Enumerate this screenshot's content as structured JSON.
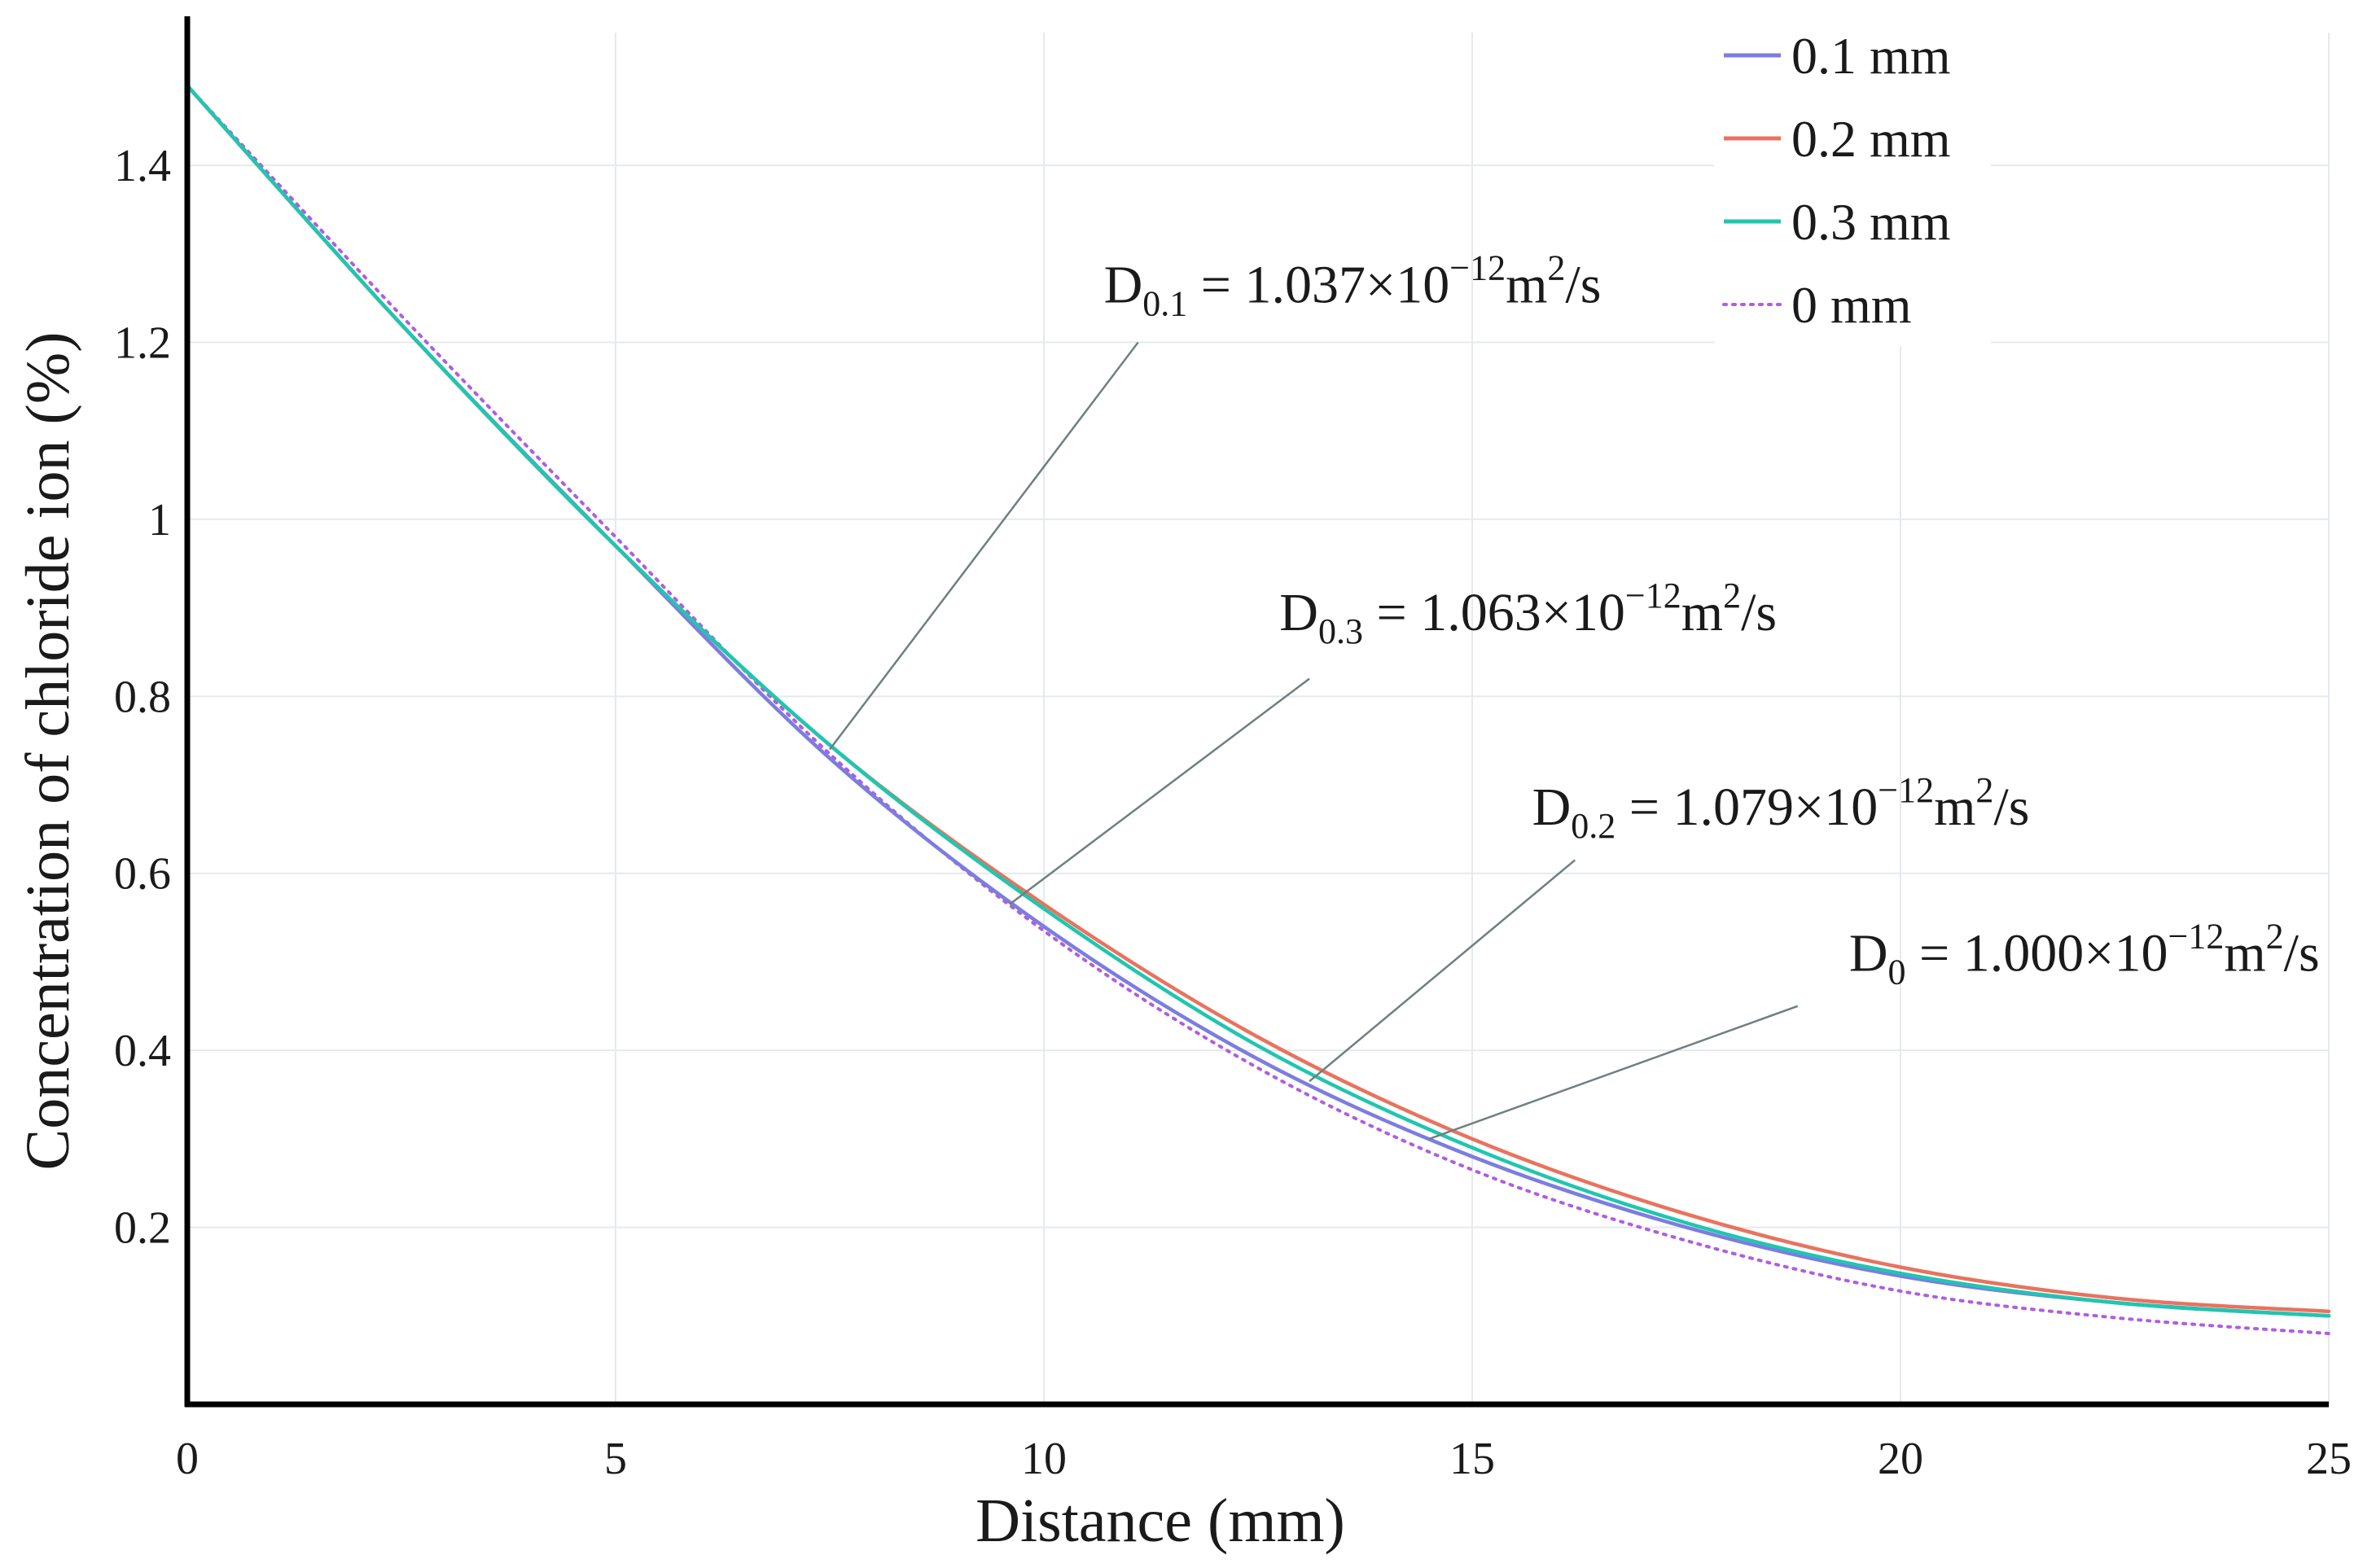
{
  "chart_data": {
    "type": "line",
    "title": "",
    "xlabel": "Distance (mm)",
    "ylabel": "Concentration of chloride ion (%)",
    "xlim": [
      0,
      25
    ],
    "ylim": [
      0,
      1.55
    ],
    "xticks": [
      0,
      5,
      10,
      15,
      20,
      25
    ],
    "xtick_labels": [
      "0",
      "5",
      "10",
      "15",
      "20",
      "25"
    ],
    "yticks": [
      0.2,
      0.4,
      0.6,
      0.8,
      1.0,
      1.2,
      1.4
    ],
    "ytick_labels": [
      "0.2",
      "0.4",
      "0.6",
      "0.8",
      "1",
      "1.2",
      "1.4"
    ],
    "grid": true,
    "legend_position": "top-right",
    "x": [
      0,
      2.5,
      5,
      7.5,
      10,
      12.5,
      15,
      17.5,
      20,
      22.5,
      25
    ],
    "series": [
      {
        "name": "0.1 mm",
        "color": "#7b7de0",
        "dash": "solid",
        "values": [
          1.49,
          1.22,
          0.97,
          0.73,
          0.54,
          0.39,
          0.28,
          0.2,
          0.145,
          0.115,
          0.1
        ]
      },
      {
        "name": "0.2 mm",
        "color": "#e8735e",
        "dash": "solid",
        "values": [
          1.49,
          1.22,
          0.97,
          0.745,
          0.565,
          0.415,
          0.3,
          0.215,
          0.155,
          0.12,
          0.105
        ]
      },
      {
        "name": "0.3 mm",
        "color": "#1fc6b0",
        "dash": "solid",
        "values": [
          1.49,
          1.22,
          0.97,
          0.745,
          0.56,
          0.405,
          0.29,
          0.205,
          0.148,
          0.115,
          0.1
        ]
      },
      {
        "name": "0 mm",
        "color": "#b05de0",
        "dash": "dotted",
        "values": [
          1.49,
          1.23,
          0.98,
          0.735,
          0.535,
          0.38,
          0.265,
          0.185,
          0.128,
          0.098,
          0.08
        ]
      }
    ],
    "annotations": [
      {
        "base": "D",
        "sub": "0.1",
        "eq": " = 1.037×10",
        "exp": "−12",
        "unit": "m",
        "unit_exp": "2",
        "tail": "/s",
        "text_x": 10.7,
        "text_y": 1.245,
        "anchor_x": 7.5,
        "anchor_y": 0.74,
        "line_start_x": 11.1,
        "line_start_y": 1.2
      },
      {
        "base": "D",
        "sub": "0.3",
        "eq": " = 1.063×10",
        "exp": "−12",
        "unit": "m",
        "unit_exp": "2",
        "tail": "/s",
        "text_x": 12.75,
        "text_y": 0.875,
        "anchor_x": 9.6,
        "anchor_y": 0.565,
        "line_start_x": 13.1,
        "line_start_y": 0.82
      },
      {
        "base": "D",
        "sub": "0.2",
        "eq": " = 1.079×10",
        "exp": "−12",
        "unit": "m",
        "unit_exp": "2",
        "tail": "/s",
        "text_x": 15.7,
        "text_y": 0.655,
        "anchor_x": 13.1,
        "anchor_y": 0.365,
        "line_start_x": 16.2,
        "line_start_y": 0.615
      },
      {
        "base": "D",
        "sub": "0",
        "eq": " = 1.000×10",
        "exp": "−12",
        "unit": "m",
        "unit_exp": "2",
        "tail": "/s",
        "text_x": 19.4,
        "text_y": 0.49,
        "anchor_x": 14.5,
        "anchor_y": 0.3,
        "line_start_x": 18.8,
        "line_start_y": 0.45
      }
    ]
  }
}
